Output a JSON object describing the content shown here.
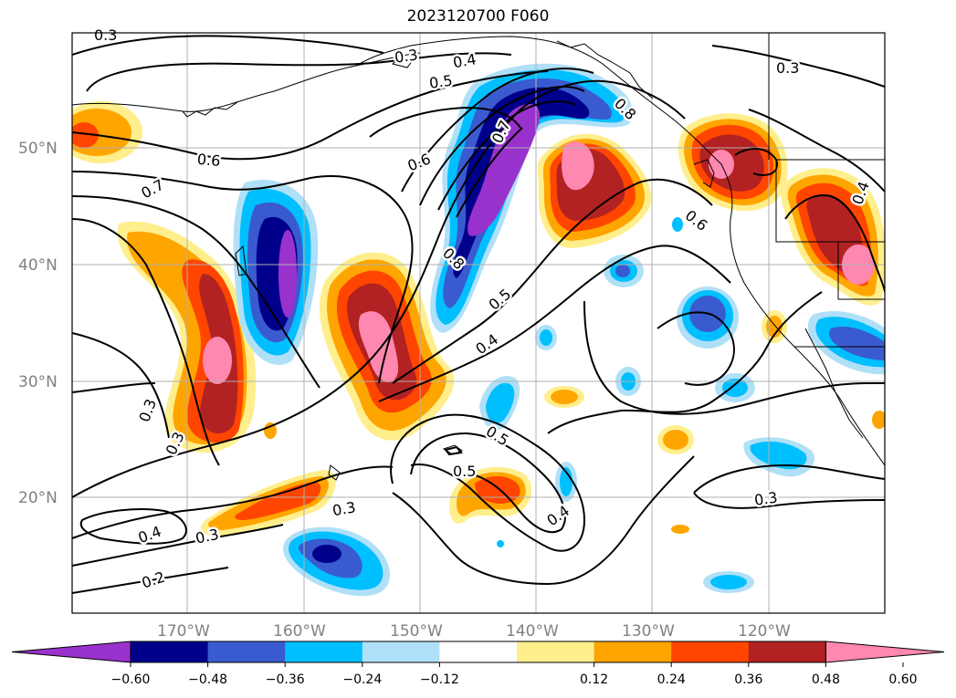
{
  "title": "2023120700 F060",
  "map": {
    "lat_labels": [
      "50°N",
      "40°N",
      "30°N",
      "20°N"
    ],
    "lon_labels": [
      "170°W",
      "160°W",
      "150°W",
      "140°W",
      "130°W",
      "120°W"
    ],
    "contour_labels": [
      "0.3",
      "0.4",
      "0.5",
      "0.3",
      "0.6",
      "0.6",
      "0.7",
      "0.7",
      "0.8",
      "0.8",
      "0.6",
      "0.5",
      "0.4",
      "0.3",
      "0.3",
      "0.4",
      "0.5",
      "0.5",
      "0.3",
      "0.4",
      "0.3",
      "0.2",
      "0.3",
      "0.4",
      "0.3"
    ]
  },
  "colorbar": {
    "ticks": [
      "−0.60",
      "−0.48",
      "−0.36",
      "−0.24",
      "−0.12",
      "0.12",
      "0.24",
      "0.36",
      "0.48",
      "0.60"
    ],
    "colors": [
      "#9932cc",
      "#00008b",
      "#3a5bd0",
      "#00bfff",
      "#b0e0f8",
      "#ffffff",
      "#ffee8c",
      "#ffa500",
      "#ff4500",
      "#b22222",
      "#ff88b0"
    ]
  }
}
